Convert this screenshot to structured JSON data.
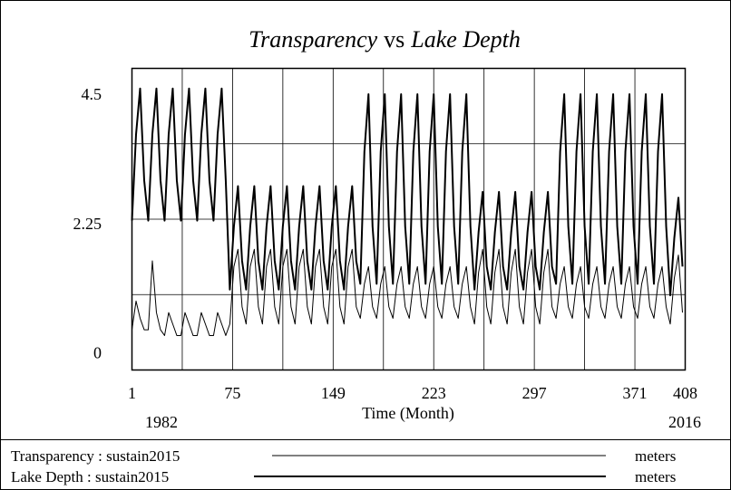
{
  "chart_data": {
    "type": "line",
    "title_parts": [
      "Transparency",
      "vs",
      "Lake Depth"
    ],
    "xlabel": "Time (Month)",
    "x_range_labels": [
      "1982",
      "2016"
    ],
    "x": [
      1,
      4,
      7,
      10,
      13,
      16,
      19,
      22,
      25,
      28,
      31,
      34,
      37,
      40,
      43,
      46,
      49,
      52,
      55,
      58,
      61,
      64,
      67,
      70,
      73,
      76,
      79,
      82,
      85,
      88,
      91,
      94,
      97,
      100,
      103,
      106,
      109,
      112,
      115,
      118,
      121,
      124,
      127,
      130,
      133,
      136,
      139,
      142,
      145,
      148,
      151,
      154,
      157,
      160,
      163,
      166,
      169,
      172,
      175,
      178,
      181,
      184,
      187,
      190,
      193,
      196,
      199,
      202,
      205,
      208,
      211,
      214,
      217,
      220,
      223,
      226,
      229,
      232,
      235,
      238,
      241,
      244,
      247,
      250,
      253,
      256,
      259,
      262,
      265,
      268,
      271,
      274,
      277,
      280,
      283,
      286,
      289,
      292,
      295,
      298,
      301,
      304,
      307,
      310,
      313,
      316,
      319,
      322,
      325,
      328,
      331,
      334,
      337,
      340,
      343,
      346,
      349,
      352,
      355,
      358,
      361,
      364,
      367,
      370,
      373,
      376,
      379,
      382,
      385,
      388,
      391,
      394,
      397,
      400,
      403,
      406
    ],
    "series": [
      {
        "name": "Transparency : sustain2015",
        "unit": "meters",
        "color": "#000000",
        "width": 1,
        "values": [
          0.4,
          0.9,
          0.6,
          0.4,
          0.4,
          1.6,
          0.7,
          0.4,
          0.3,
          0.7,
          0.5,
          0.3,
          0.3,
          0.7,
          0.5,
          0.3,
          0.3,
          0.7,
          0.5,
          0.3,
          0.3,
          0.7,
          0.5,
          0.3,
          0.5,
          1.5,
          1.8,
          0.8,
          0.5,
          1.5,
          1.8,
          0.8,
          0.5,
          1.5,
          1.8,
          0.8,
          0.5,
          1.5,
          1.8,
          0.8,
          0.5,
          1.5,
          1.8,
          0.8,
          0.5,
          1.5,
          1.8,
          0.8,
          0.5,
          1.5,
          1.8,
          0.8,
          0.5,
          1.5,
          1.8,
          0.8,
          0.6,
          1.2,
          1.5,
          0.8,
          0.6,
          1.2,
          1.5,
          0.8,
          0.6,
          1.2,
          1.5,
          0.8,
          0.6,
          1.2,
          1.5,
          0.8,
          0.6,
          1.2,
          1.5,
          0.8,
          0.6,
          1.2,
          1.5,
          0.8,
          0.6,
          1.2,
          1.5,
          0.8,
          0.5,
          1.4,
          1.8,
          0.8,
          0.5,
          1.4,
          1.8,
          0.8,
          0.5,
          1.4,
          1.8,
          0.8,
          0.5,
          1.4,
          1.8,
          0.8,
          0.5,
          1.4,
          1.8,
          0.8,
          0.6,
          1.2,
          1.5,
          0.8,
          0.6,
          1.2,
          1.5,
          0.8,
          0.6,
          1.2,
          1.5,
          0.8,
          0.6,
          1.2,
          1.5,
          0.8,
          0.6,
          1.2,
          1.5,
          0.8,
          0.6,
          1.2,
          1.5,
          0.8,
          0.6,
          1.2,
          1.5,
          0.8,
          0.5,
          1.3,
          1.7,
          0.7
        ]
      },
      {
        "name": "Lake Depth : sustain2015",
        "unit": "meters",
        "color": "#000000",
        "width": 2,
        "values": [
          2.3,
          3.8,
          4.6,
          3.0,
          2.3,
          3.8,
          4.6,
          3.0,
          2.3,
          3.8,
          4.6,
          3.0,
          2.3,
          3.8,
          4.6,
          3.0,
          2.3,
          3.8,
          4.6,
          3.0,
          2.3,
          3.8,
          4.6,
          3.0,
          1.1,
          2.2,
          2.9,
          1.6,
          1.1,
          2.2,
          2.9,
          1.6,
          1.1,
          2.2,
          2.9,
          1.6,
          1.1,
          2.2,
          2.9,
          1.6,
          1.1,
          2.2,
          2.9,
          1.6,
          1.1,
          2.2,
          2.9,
          1.6,
          1.1,
          2.2,
          2.9,
          1.6,
          1.1,
          2.2,
          2.9,
          1.6,
          1.2,
          3.5,
          4.5,
          2.2,
          1.2,
          3.5,
          4.5,
          2.2,
          1.2,
          3.5,
          4.5,
          2.2,
          1.2,
          3.5,
          4.5,
          2.2,
          1.2,
          3.5,
          4.5,
          2.2,
          1.2,
          3.5,
          4.5,
          2.2,
          1.2,
          3.5,
          4.5,
          2.2,
          1.1,
          2.1,
          2.8,
          1.5,
          1.1,
          2.1,
          2.8,
          1.5,
          1.1,
          2.1,
          2.8,
          1.5,
          1.1,
          2.1,
          2.8,
          1.5,
          1.1,
          2.1,
          2.8,
          1.5,
          1.2,
          3.5,
          4.5,
          2.2,
          1.2,
          3.5,
          4.5,
          2.2,
          1.2,
          3.5,
          4.5,
          2.2,
          1.2,
          3.5,
          4.5,
          2.2,
          1.2,
          3.5,
          4.5,
          2.2,
          1.2,
          3.5,
          4.5,
          2.2,
          1.2,
          3.5,
          4.5,
          2.2,
          1.0,
          2.0,
          2.7,
          1.5
        ]
      }
    ],
    "xlim": [
      1,
      408
    ],
    "xticks": [
      1,
      75,
      149,
      223,
      297,
      371,
      408
    ],
    "ylim": [
      -0.3,
      4.95
    ],
    "yticks": [
      0,
      2.25,
      4.5
    ],
    "grid": true
  }
}
